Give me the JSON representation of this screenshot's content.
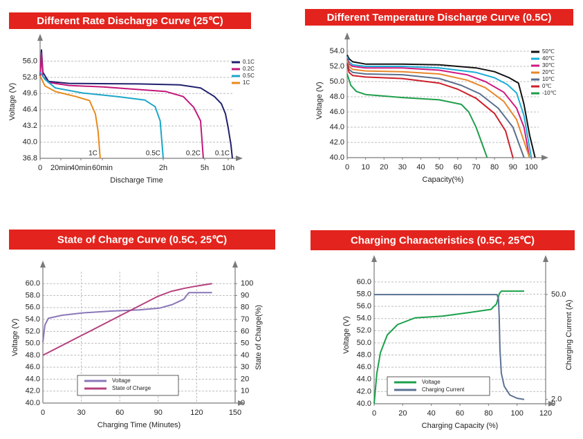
{
  "chart_data": [
    {
      "type": "line",
      "title": "Different Rate Discharge Curve (25℃)",
      "xlabel": "Discharge Time",
      "ylabel": "Voltage (V)",
      "xlim": [
        0,
        660
      ],
      "xticks": [
        0,
        {
          "value": 20,
          "label": "20min"
        },
        {
          "value": 40,
          "label": "40min"
        },
        {
          "value": 60,
          "label": "60min"
        },
        {
          "value": 120,
          "label": "2h"
        },
        {
          "value": 300,
          "label": "5h"
        },
        {
          "value": 600,
          "label": "10h"
        }
      ],
      "ylim": [
        36.8,
        59.2
      ],
      "yticks": [
        36.8,
        {
          "value": 40,
          "label": "40.0"
        },
        43.2,
        46.4,
        49.6,
        52.8,
        {
          "value": 56,
          "label": "56.0"
        }
      ],
      "grid": true,
      "legend": "right",
      "series": [
        {
          "name": "0.1C",
          "color": "#1f1f6e",
          "x": [
            0,
            1.3,
            2.7,
            8,
            28,
            96,
            192,
            282,
            424,
            512,
            565,
            600,
            635,
            653
          ],
          "values": [
            53.1,
            58.2,
            53.8,
            52.0,
            51.6,
            51.5,
            51.3,
            50.7,
            49.0,
            47.6,
            45.6,
            42.8,
            39.4,
            36.8
          ]
        },
        {
          "name": "0.2C",
          "color": "#c2177a",
          "x": [
            0,
            1.3,
            2.7,
            8,
            28,
            61,
            132,
            207,
            252,
            282,
            294
          ],
          "values": [
            53.0,
            57.5,
            53.0,
            51.8,
            51.2,
            50.9,
            50.0,
            49.0,
            46.9,
            44.2,
            36.8
          ]
        },
        {
          "name": "0.5C",
          "color": "#1aa6c8",
          "x": [
            0,
            4.7,
            14.7,
            42,
            75,
            102,
            112,
            117,
            120
          ],
          "values": [
            53.8,
            52.4,
            50.7,
            49.7,
            49.0,
            48.3,
            47.0,
            44.2,
            36.8
          ]
        },
        {
          "name": "1C",
          "color": "#e88a1a",
          "x": [
            0,
            4.7,
            14.7,
            35,
            48,
            53.5,
            56,
            58
          ],
          "values": [
            53.1,
            51.1,
            50.0,
            49.0,
            48.2,
            45.6,
            42.2,
            36.8
          ]
        }
      ],
      "annotations": [
        "1C",
        "0.5C",
        "0.2C",
        "0.1C"
      ]
    },
    {
      "type": "line",
      "title": "Different Temperature Discharge Curve (0.5C)",
      "xlabel": "Capacity(%)",
      "ylabel": "Voltage (V)",
      "xlim": [
        0,
        104
      ],
      "xticks": [
        0,
        10,
        20,
        30,
        40,
        50,
        60,
        70,
        80,
        90,
        100
      ],
      "ylim": [
        40,
        55
      ],
      "yticks": [
        {
          "value": 40,
          "label": "40.0"
        },
        {
          "value": 42,
          "label": "42.0"
        },
        {
          "value": 44,
          "label": "44.0"
        },
        {
          "value": 46,
          "label": "46.0"
        },
        {
          "value": 48,
          "label": "48.0"
        },
        {
          "value": 50,
          "label": "50.0"
        },
        {
          "value": 52,
          "label": "52.0"
        },
        {
          "value": 54,
          "label": "54.0"
        }
      ],
      "grid": true,
      "legend": "right",
      "series": [
        {
          "name": "50℃",
          "color": "#111111",
          "x": [
            0,
            1,
            3,
            10,
            30,
            50,
            70,
            80,
            88,
            93,
            96,
            99,
            102
          ],
          "values": [
            53.5,
            53.0,
            52.6,
            52.3,
            52.3,
            52.2,
            51.8,
            51.3,
            50.5,
            49.8,
            47.0,
            43.0,
            40.0
          ]
        },
        {
          "name": "40℃",
          "color": "#1aaed8",
          "x": [
            0,
            1,
            3,
            10,
            30,
            50,
            70,
            80,
            87,
            92,
            96,
            100
          ],
          "values": [
            53.3,
            52.6,
            52.2,
            52.0,
            52.0,
            51.8,
            51.2,
            50.5,
            49.6,
            48.5,
            45.5,
            40.0
          ]
        },
        {
          "name": "30℃",
          "color": "#d0197f",
          "x": [
            0,
            1,
            3,
            10,
            30,
            50,
            65,
            75,
            85,
            92,
            96,
            99
          ],
          "values": [
            53.0,
            52.3,
            52.0,
            51.8,
            51.8,
            51.5,
            50.9,
            50.0,
            48.6,
            46.5,
            44.0,
            40.0
          ]
        },
        {
          "name": "20℃",
          "color": "#e8872a",
          "x": [
            0,
            1,
            3,
            10,
            30,
            50,
            65,
            75,
            85,
            92,
            99
          ],
          "values": [
            52.8,
            52.0,
            51.6,
            51.4,
            51.3,
            51.0,
            50.2,
            49.2,
            47.4,
            45.0,
            40.0
          ]
        },
        {
          "name": "10℃",
          "color": "#5a6e8c",
          "x": [
            0,
            1,
            3,
            10,
            30,
            50,
            62,
            72,
            82,
            90,
            96
          ],
          "values": [
            52.5,
            51.6,
            51.2,
            51.0,
            50.9,
            50.4,
            49.5,
            48.4,
            46.5,
            44.0,
            40.0
          ]
        },
        {
          "name": "0℃",
          "color": "#cc1f2a",
          "x": [
            0,
            1,
            3,
            10,
            30,
            50,
            60,
            70,
            80,
            86,
            90
          ],
          "values": [
            52.3,
            51.2,
            50.8,
            50.6,
            50.4,
            49.8,
            49.0,
            47.8,
            45.8,
            43.5,
            40.0
          ]
        },
        {
          "name": "-10℃",
          "color": "#1e9e4a",
          "x": [
            0,
            2,
            5,
            10,
            30,
            50,
            62,
            66,
            70,
            73,
            76
          ],
          "values": [
            51.0,
            49.5,
            48.7,
            48.3,
            47.9,
            47.6,
            47.0,
            46.0,
            44.0,
            42.0,
            40.0
          ]
        }
      ]
    },
    {
      "type": "line",
      "title": "State of Charge Curve (0.5C, 25℃)",
      "xlabel": "Charging Time (Minutes)",
      "ylabel": "Voltage (V)",
      "y2label": "State of Charge(%)",
      "xlim": [
        0,
        150
      ],
      "xticks": [
        0,
        30,
        60,
        90,
        120,
        150
      ],
      "ylim": [
        40,
        62
      ],
      "yticks": [
        {
          "value": 40,
          "label": "40.0"
        },
        {
          "value": 42,
          "label": "42.0"
        },
        {
          "value": 44,
          "label": "44.0"
        },
        {
          "value": 46,
          "label": "46.0"
        },
        {
          "value": 48,
          "label": "48.0"
        },
        {
          "value": 50,
          "label": "50.0"
        },
        {
          "value": 52,
          "label": "52.0"
        },
        {
          "value": 54,
          "label": "54.0"
        },
        {
          "value": 56,
          "label": "56.0"
        },
        {
          "value": 58,
          "label": "58.0"
        },
        {
          "value": 60,
          "label": "60.0"
        }
      ],
      "y2lim": [
        0,
        110
      ],
      "y2ticks": [
        0,
        10,
        20,
        30,
        40,
        50,
        60,
        70,
        80,
        90,
        100
      ],
      "grid": "both",
      "legend": "lower center",
      "series": [
        {
          "name": "Voltage",
          "color": "#8a76b8",
          "x": [
            0,
            1.6,
            4.3,
            15,
            31,
            53,
            75,
            91,
            101,
            110,
            112,
            114,
            132
          ],
          "values": [
            50.2,
            53.1,
            54.2,
            54.7,
            55.1,
            55.4,
            55.6,
            55.9,
            56.5,
            57.4,
            58.0,
            58.5,
            58.5
          ]
        },
        {
          "name": "State of Charge",
          "color": "#b5407e",
          "axis": "y2",
          "x": [
            0,
            30,
            60,
            90,
            100,
            110,
            120,
            132
          ],
          "values": [
            40,
            56.5,
            73,
            89.5,
            93.5,
            96,
            98,
            100
          ]
        }
      ]
    },
    {
      "type": "line",
      "title": "Charging Characteristics (0.5C, 25℃)",
      "xlabel": "Charging Capacity (%)",
      "ylabel": "Voltage (V)",
      "y2label": "Charging Current (A)",
      "xlim": [
        0,
        120
      ],
      "xticks": [
        0,
        20,
        40,
        60,
        80,
        100,
        120
      ],
      "ylim": [
        40,
        62.6
      ],
      "yticks": [
        {
          "value": 40,
          "label": "40.0"
        },
        {
          "value": 42,
          "label": "42.0"
        },
        {
          "value": 44,
          "label": "44.0"
        },
        {
          "value": 46,
          "label": "46.0"
        },
        {
          "value": 48,
          "label": "48.0"
        },
        {
          "value": 50,
          "label": "50.0"
        },
        {
          "value": 52,
          "label": "52.0"
        },
        {
          "value": 54,
          "label": "54.0"
        },
        {
          "value": 56,
          "label": "56.0"
        },
        {
          "value": 58,
          "label": "58.0"
        },
        {
          "value": 60,
          "label": "60.0"
        }
      ],
      "y2lim": [
        0,
        63
      ],
      "y2ticks": [
        0,
        {
          "value": 2,
          "label": "2.0"
        },
        {
          "value": 50,
          "label": "50.0"
        }
      ],
      "grid": true,
      "legend": "lower center",
      "series": [
        {
          "name": "Voltage",
          "color": "#1aa04a",
          "x": [
            0,
            1.9,
            4.4,
            9.2,
            16.4,
            28.5,
            47.9,
            67.2,
            81.8,
            85.6,
            87.6,
            89,
            105
          ],
          "values": [
            40.0,
            45.0,
            48.4,
            51.3,
            53.0,
            54.1,
            54.4,
            55.0,
            55.5,
            56.4,
            58.1,
            58.5,
            58.5
          ]
        },
        {
          "name": "Charging Current",
          "color": "#5a7294",
          "axis": "y2",
          "x": [
            0,
            86,
            87,
            87.5,
            88,
            89,
            91,
            95,
            100,
            105
          ],
          "values": [
            50,
            50,
            48,
            40,
            25,
            14,
            8,
            4,
            2.5,
            2.0
          ]
        }
      ]
    }
  ]
}
